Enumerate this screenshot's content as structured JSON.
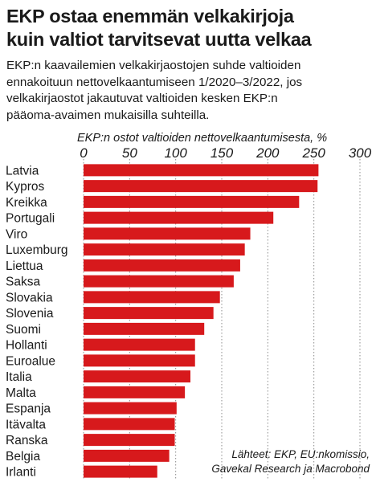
{
  "title_lines": [
    "EKP ostaa enemmän velkakirjoja",
    "kuin valtiot tarvitsevat uutta velkaa"
  ],
  "subtitle_lines": [
    "EKP:n kaavailemien velkakirjaostojen suhde valtioiden",
    "ennakoituun nettovelkaantumiseen 1/2020–3/2022, jos",
    "velkakirjaostot jakautuvat valtioiden kesken EKP:n",
    "pääoma-avaimen mukaisilla suhteilla."
  ],
  "source_lines": [
    "Lähteet: EKP, EU:nkomissio,",
    "Gavekal Research ja Macrobond"
  ],
  "colors": {
    "bar": "#d7191c",
    "grid": "#8c8c8c",
    "text": "#1a1a1a"
  },
  "chart_data": {
    "type": "bar",
    "orientation": "horizontal",
    "axis_label": "EKP:n ostot valtioiden nettovelkaantumisesta, %",
    "xlim": [
      0,
      300
    ],
    "ticks": [
      0,
      50,
      100,
      150,
      200,
      250,
      300
    ],
    "tick_labels": [
      "0",
      "50",
      "100",
      "150",
      "200",
      "250",
      "300"
    ],
    "grid": true,
    "categories": [
      "Latvia",
      "Kypros",
      "Kreikka",
      "Portugali",
      "Viro",
      "Luxemburg",
      "Liettua",
      "Saksa",
      "Slovakia",
      "Slovenia",
      "Suomi",
      "Hollanti",
      "Euroalue",
      "Italia",
      "Malta",
      "Espanja",
      "Itävalta",
      "Ranska",
      "Belgia",
      "Irlanti"
    ],
    "values": [
      255,
      254,
      234,
      206,
      181,
      175,
      170,
      163,
      148,
      141,
      131,
      121,
      121,
      116,
      110,
      101,
      99,
      99,
      93,
      80
    ]
  }
}
